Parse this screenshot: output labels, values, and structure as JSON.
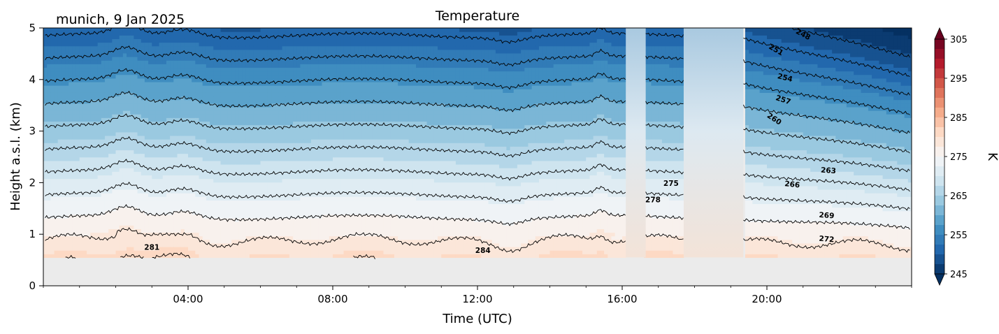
{
  "chart_data": {
    "type": "heatmap",
    "title": "Temperature",
    "subtitle": "munich, 9 Jan 2025",
    "xlabel": "Time (UTC)",
    "ylabel": "Height a.s.l. (km)",
    "xlim_hours": [
      0,
      24
    ],
    "ylim_km": [
      0,
      5
    ],
    "x_ticks": [
      {
        "hour": 4,
        "label": "04:00"
      },
      {
        "hour": 8,
        "label": "08:00"
      },
      {
        "hour": 12,
        "label": "12:00"
      },
      {
        "hour": 16,
        "label": "16:00"
      },
      {
        "hour": 20,
        "label": "20:00"
      }
    ],
    "y_ticks": [
      {
        "km": 0,
        "label": "0"
      },
      {
        "km": 1,
        "label": "1"
      },
      {
        "km": 2,
        "label": "2"
      },
      {
        "km": 3,
        "label": "3"
      },
      {
        "km": 4,
        "label": "4"
      },
      {
        "km": 5,
        "label": "5"
      }
    ],
    "colorbar": {
      "label": "K",
      "range": [
        245,
        305
      ],
      "ticks": [
        {
          "value": 305,
          "label": "305"
        },
        {
          "value": 295,
          "label": "295"
        },
        {
          "value": 285,
          "label": "285"
        },
        {
          "value": 275,
          "label": "275"
        },
        {
          "value": 265,
          "label": "265"
        },
        {
          "value": 255,
          "label": "255"
        },
        {
          "value": 245,
          "label": "245"
        }
      ],
      "colormap": "RdBu_r",
      "extend": "both"
    },
    "no_data_below_km": 0.55,
    "data_gaps_hours": [
      [
        16.1,
        16.65
      ],
      [
        17.7,
        19.35
      ]
    ],
    "surface_temperature_K": 284,
    "lapse_rate_K_per_km": 6.8,
    "contour_labels": [
      {
        "value": 248,
        "label": "248",
        "hour": 21.0,
        "km": 4.87,
        "angle": 28
      },
      {
        "value": 251,
        "label": "251",
        "hour": 20.25,
        "km": 4.57,
        "angle": 30
      },
      {
        "value": 254,
        "label": "254",
        "hour": 20.5,
        "km": 4.03,
        "angle": 14
      },
      {
        "value": 257,
        "label": "257",
        "hour": 20.45,
        "km": 3.6,
        "angle": 18
      },
      {
        "value": 260,
        "label": "260",
        "hour": 20.2,
        "km": 3.23,
        "angle": 33
      },
      {
        "value": 263,
        "label": "263",
        "hour": 21.7,
        "km": 2.23,
        "angle": 4
      },
      {
        "value": 266,
        "label": "266",
        "hour": 20.7,
        "km": 1.96,
        "angle": 6
      },
      {
        "value": 269,
        "label": "269",
        "hour": 21.65,
        "km": 1.36,
        "angle": 4
      },
      {
        "value": 272,
        "label": "272",
        "hour": 21.65,
        "km": 0.9,
        "angle": 5
      },
      {
        "value": 275,
        "label": "275",
        "hour": 17.35,
        "km": 1.98,
        "angle": 0
      },
      {
        "value": 278,
        "label": "278",
        "hour": 16.85,
        "km": 1.66,
        "angle": 0
      },
      {
        "value": 281,
        "label": "281",
        "hour": 3.0,
        "km": 0.74,
        "angle": 0
      },
      {
        "value": 284,
        "label": "284",
        "hour": 12.15,
        "km": 0.68,
        "angle": 0
      }
    ]
  }
}
